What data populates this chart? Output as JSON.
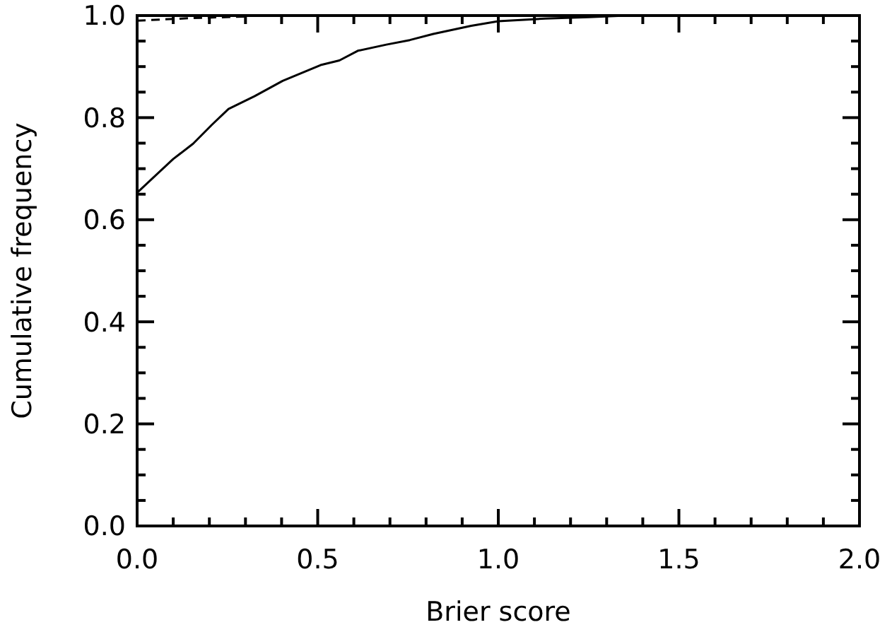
{
  "chart_data": {
    "type": "line",
    "xlabel": "Brier score",
    "ylabel": "Cumulative frequency",
    "xlim": [
      0,
      2
    ],
    "ylim": [
      0,
      1
    ],
    "xticks": [
      {
        "value": 0,
        "label": "0.0"
      },
      {
        "value": 0.1,
        "label": null
      },
      {
        "value": 0.2,
        "label": null
      },
      {
        "value": 0.3,
        "label": null
      },
      {
        "value": 0.4,
        "label": null
      },
      {
        "value": 0.5,
        "label": "0.5"
      },
      {
        "value": 0.6,
        "label": null
      },
      {
        "value": 0.7,
        "label": null
      },
      {
        "value": 0.8,
        "label": null
      },
      {
        "value": 0.9,
        "label": null
      },
      {
        "value": 1,
        "label": "1.0"
      },
      {
        "value": 1.1,
        "label": null
      },
      {
        "value": 1.2,
        "label": null
      },
      {
        "value": 1.3,
        "label": null
      },
      {
        "value": 1.4,
        "label": null
      },
      {
        "value": 1.5,
        "label": "1.5"
      },
      {
        "value": 1.6,
        "label": null
      },
      {
        "value": 1.7,
        "label": null
      },
      {
        "value": 1.8,
        "label": null
      },
      {
        "value": 1.9,
        "label": null
      },
      {
        "value": 2,
        "label": "2.0"
      }
    ],
    "yticks": [
      {
        "value": 0,
        "label": "0.0"
      },
      {
        "value": 0.05,
        "label": null
      },
      {
        "value": 0.1,
        "label": null
      },
      {
        "value": 0.15,
        "label": null
      },
      0.2,
      {
        "value": 0.25,
        "label": null
      },
      {
        "value": 0.3,
        "label": null
      },
      {
        "value": 0.35,
        "label": null
      },
      0.4,
      {
        "value": 0.45,
        "label": null
      },
      {
        "value": 0.5,
        "label": null
      },
      {
        "value": 0.55,
        "label": null
      },
      0.6,
      {
        "value": 0.65,
        "label": null
      },
      {
        "value": 0.7,
        "label": null
      },
      {
        "value": 0.75,
        "label": null
      },
      0.8,
      {
        "value": 0.85,
        "label": null
      },
      {
        "value": 0.9,
        "label": null
      },
      {
        "value": 0.95,
        "label": null
      },
      {
        "value": 1,
        "label": "1.0"
      }
    ],
    "grid": false,
    "series": [
      {
        "color": "#000000",
        "line_style": "solid",
        "x": [
          0,
          0.1,
          0.155,
          0.207,
          0.253,
          0.325,
          0.403,
          0.508,
          0.56,
          0.611,
          0.69,
          0.755,
          0.82,
          0.925,
          1.0,
          1.13,
          1.25,
          1.355,
          1.5,
          2.0
        ],
        "values": [
          0.653,
          0.719,
          0.749,
          0.786,
          0.817,
          0.842,
          0.872,
          0.903,
          0.912,
          0.931,
          0.943,
          0.952,
          0.964,
          0.98,
          0.989,
          0.994,
          0.997,
          1.0,
          1.0,
          1.0
        ]
      },
      {
        "color": "#000000",
        "line_style": "dashed",
        "x": [
          0,
          0.15,
          0.3
        ],
        "values": [
          0.99,
          0.995,
          0.998
        ]
      }
    ]
  }
}
